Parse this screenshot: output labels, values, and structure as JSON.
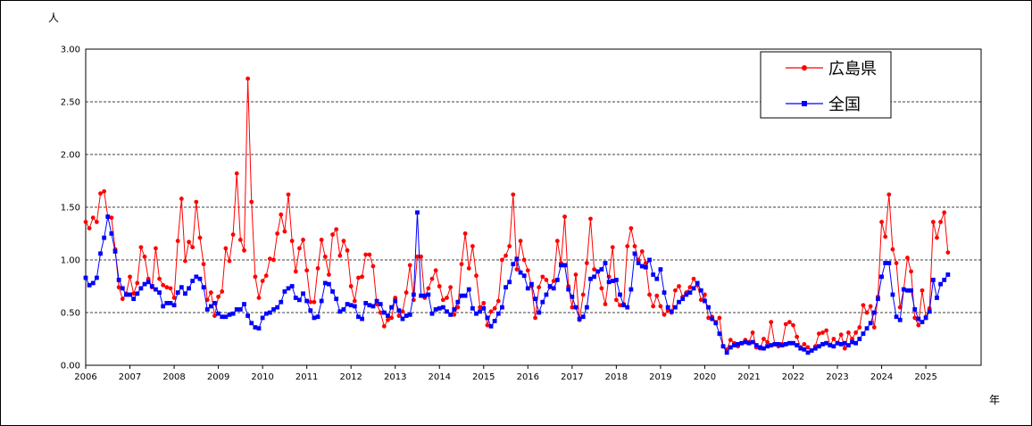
{
  "chart_data": {
    "type": "line",
    "title": "",
    "ylabel": "人",
    "xlabel": "年",
    "ylim": [
      0,
      3.0
    ],
    "y_ticks": [
      "0.00",
      "0.50",
      "1.00",
      "1.50",
      "2.00",
      "2.50",
      "3.00"
    ],
    "x_ticks": [
      "2006",
      "2007",
      "2008",
      "2009",
      "2010",
      "2011",
      "2012",
      "2013",
      "2014",
      "2015",
      "2016",
      "2017",
      "2018",
      "2019",
      "2020",
      "2021",
      "2022",
      "2023",
      "2024",
      "2025"
    ],
    "x_start": "2006-01",
    "grid": "horizontal-dashed",
    "legend_position": "top-right",
    "series": [
      {
        "name": "広島県",
        "color": "#ff0000",
        "marker": "circle",
        "values": [
          1.36,
          1.3,
          1.4,
          1.36,
          1.63,
          1.65,
          1.41,
          1.4,
          1.1,
          0.74,
          0.63,
          0.68,
          0.84,
          0.68,
          0.78,
          1.12,
          1.03,
          0.82,
          0.74,
          1.11,
          0.82,
          0.76,
          0.74,
          0.73,
          0.64,
          1.18,
          1.58,
          0.99,
          1.17,
          1.12,
          1.55,
          1.21,
          0.96,
          0.62,
          0.69,
          0.47,
          0.65,
          0.7,
          1.11,
          0.99,
          1.24,
          1.82,
          1.19,
          1.09,
          2.72,
          1.55,
          0.84,
          0.64,
          0.8,
          0.85,
          1.01,
          1.0,
          1.25,
          1.43,
          1.27,
          1.62,
          1.18,
          0.89,
          1.11,
          1.19,
          0.9,
          0.6,
          0.6,
          0.92,
          1.19,
          1.03,
          0.86,
          1.24,
          1.29,
          1.04,
          1.18,
          1.09,
          0.75,
          0.61,
          0.83,
          0.84,
          1.05,
          1.05,
          0.94,
          0.58,
          0.5,
          0.37,
          0.43,
          0.45,
          0.64,
          0.47,
          0.51,
          0.69,
          0.95,
          0.62,
          1.03,
          1.03,
          0.64,
          0.73,
          0.82,
          0.9,
          0.75,
          0.62,
          0.64,
          0.74,
          0.48,
          0.55,
          0.96,
          1.25,
          0.92,
          1.13,
          0.85,
          0.55,
          0.59,
          0.38,
          0.51,
          0.54,
          0.61,
          1.0,
          1.04,
          1.13,
          1.62,
          0.91,
          1.18,
          1.0,
          0.9,
          0.75,
          0.45,
          0.74,
          0.84,
          0.81,
          0.74,
          0.8,
          1.18,
          0.97,
          1.41,
          0.75,
          0.55,
          0.86,
          0.43,
          0.67,
          0.97,
          1.39,
          0.91,
          0.89,
          0.73,
          0.58,
          0.84,
          1.12,
          0.62,
          0.57,
          0.58,
          1.13,
          1.3,
          1.13,
          1.0,
          1.08,
          0.97,
          0.67,
          0.56,
          0.66,
          0.56,
          0.48,
          0.52,
          0.5,
          0.71,
          0.75,
          0.65,
          0.69,
          0.74,
          0.82,
          0.76,
          0.62,
          0.67,
          0.45,
          0.46,
          0.41,
          0.45,
          0.18,
          0.15,
          0.24,
          0.21,
          0.18,
          0.21,
          0.24,
          0.22,
          0.31,
          0.17,
          0.16,
          0.25,
          0.22,
          0.41,
          0.2,
          0.18,
          0.2,
          0.39,
          0.41,
          0.38,
          0.27,
          0.17,
          0.2,
          0.17,
          0.14,
          0.18,
          0.3,
          0.31,
          0.33,
          0.19,
          0.25,
          0.21,
          0.29,
          0.16,
          0.31,
          0.25,
          0.31,
          0.36,
          0.57,
          0.5,
          0.56,
          0.36,
          0.65,
          1.36,
          1.22,
          1.62,
          1.1,
          0.97,
          0.55,
          0.72,
          1.02,
          0.89,
          0.45,
          0.38,
          0.71,
          0.46,
          0.54,
          1.36,
          1.21,
          1.36,
          1.45,
          1.07
        ]
      },
      {
        "name": "全国",
        "color": "#0000ff",
        "marker": "square",
        "values": [
          0.83,
          0.76,
          0.78,
          0.83,
          1.06,
          1.21,
          1.41,
          1.25,
          1.08,
          0.81,
          0.73,
          0.67,
          0.67,
          0.63,
          0.68,
          0.73,
          0.77,
          0.79,
          0.75,
          0.72,
          0.69,
          0.56,
          0.59,
          0.59,
          0.57,
          0.69,
          0.74,
          0.68,
          0.73,
          0.8,
          0.84,
          0.82,
          0.74,
          0.53,
          0.56,
          0.59,
          0.49,
          0.46,
          0.46,
          0.48,
          0.49,
          0.53,
          0.53,
          0.58,
          0.47,
          0.4,
          0.36,
          0.35,
          0.45,
          0.49,
          0.5,
          0.53,
          0.55,
          0.6,
          0.7,
          0.73,
          0.75,
          0.64,
          0.62,
          0.68,
          0.61,
          0.52,
          0.45,
          0.46,
          0.61,
          0.78,
          0.77,
          0.7,
          0.63,
          0.51,
          0.53,
          0.58,
          0.57,
          0.56,
          0.46,
          0.44,
          0.59,
          0.57,
          0.56,
          0.61,
          0.58,
          0.5,
          0.47,
          0.55,
          0.61,
          0.52,
          0.44,
          0.47,
          0.48,
          0.67,
          1.45,
          0.66,
          0.66,
          0.67,
          0.49,
          0.53,
          0.54,
          0.55,
          0.51,
          0.48,
          0.53,
          0.6,
          0.66,
          0.66,
          0.72,
          0.54,
          0.49,
          0.51,
          0.54,
          0.45,
          0.37,
          0.42,
          0.49,
          0.55,
          0.74,
          0.79,
          0.96,
          1.01,
          0.88,
          0.85,
          0.73,
          0.77,
          0.63,
          0.5,
          0.6,
          0.67,
          0.75,
          0.73,
          0.81,
          0.95,
          0.95,
          0.72,
          0.65,
          0.55,
          0.44,
          0.46,
          0.55,
          0.82,
          0.84,
          0.89,
          0.91,
          0.97,
          0.79,
          0.8,
          0.81,
          0.67,
          0.57,
          0.55,
          0.72,
          1.06,
          0.97,
          0.94,
          0.93,
          1.0,
          0.86,
          0.82,
          0.91,
          0.69,
          0.55,
          0.51,
          0.55,
          0.6,
          0.63,
          0.67,
          0.69,
          0.73,
          0.78,
          0.71,
          0.61,
          0.55,
          0.44,
          0.4,
          0.3,
          0.18,
          0.12,
          0.17,
          0.19,
          0.2,
          0.21,
          0.22,
          0.21,
          0.22,
          0.19,
          0.17,
          0.16,
          0.18,
          0.19,
          0.2,
          0.2,
          0.19,
          0.2,
          0.21,
          0.21,
          0.19,
          0.16,
          0.15,
          0.12,
          0.14,
          0.16,
          0.18,
          0.2,
          0.21,
          0.19,
          0.18,
          0.21,
          0.2,
          0.21,
          0.19,
          0.22,
          0.21,
          0.25,
          0.3,
          0.35,
          0.4,
          0.5,
          0.63,
          0.84,
          0.97,
          0.97,
          0.67,
          0.46,
          0.43,
          0.72,
          0.71,
          0.71,
          0.53,
          0.44,
          0.41,
          0.45,
          0.51,
          0.81,
          0.64,
          0.77,
          0.81,
          0.86
        ]
      }
    ]
  }
}
